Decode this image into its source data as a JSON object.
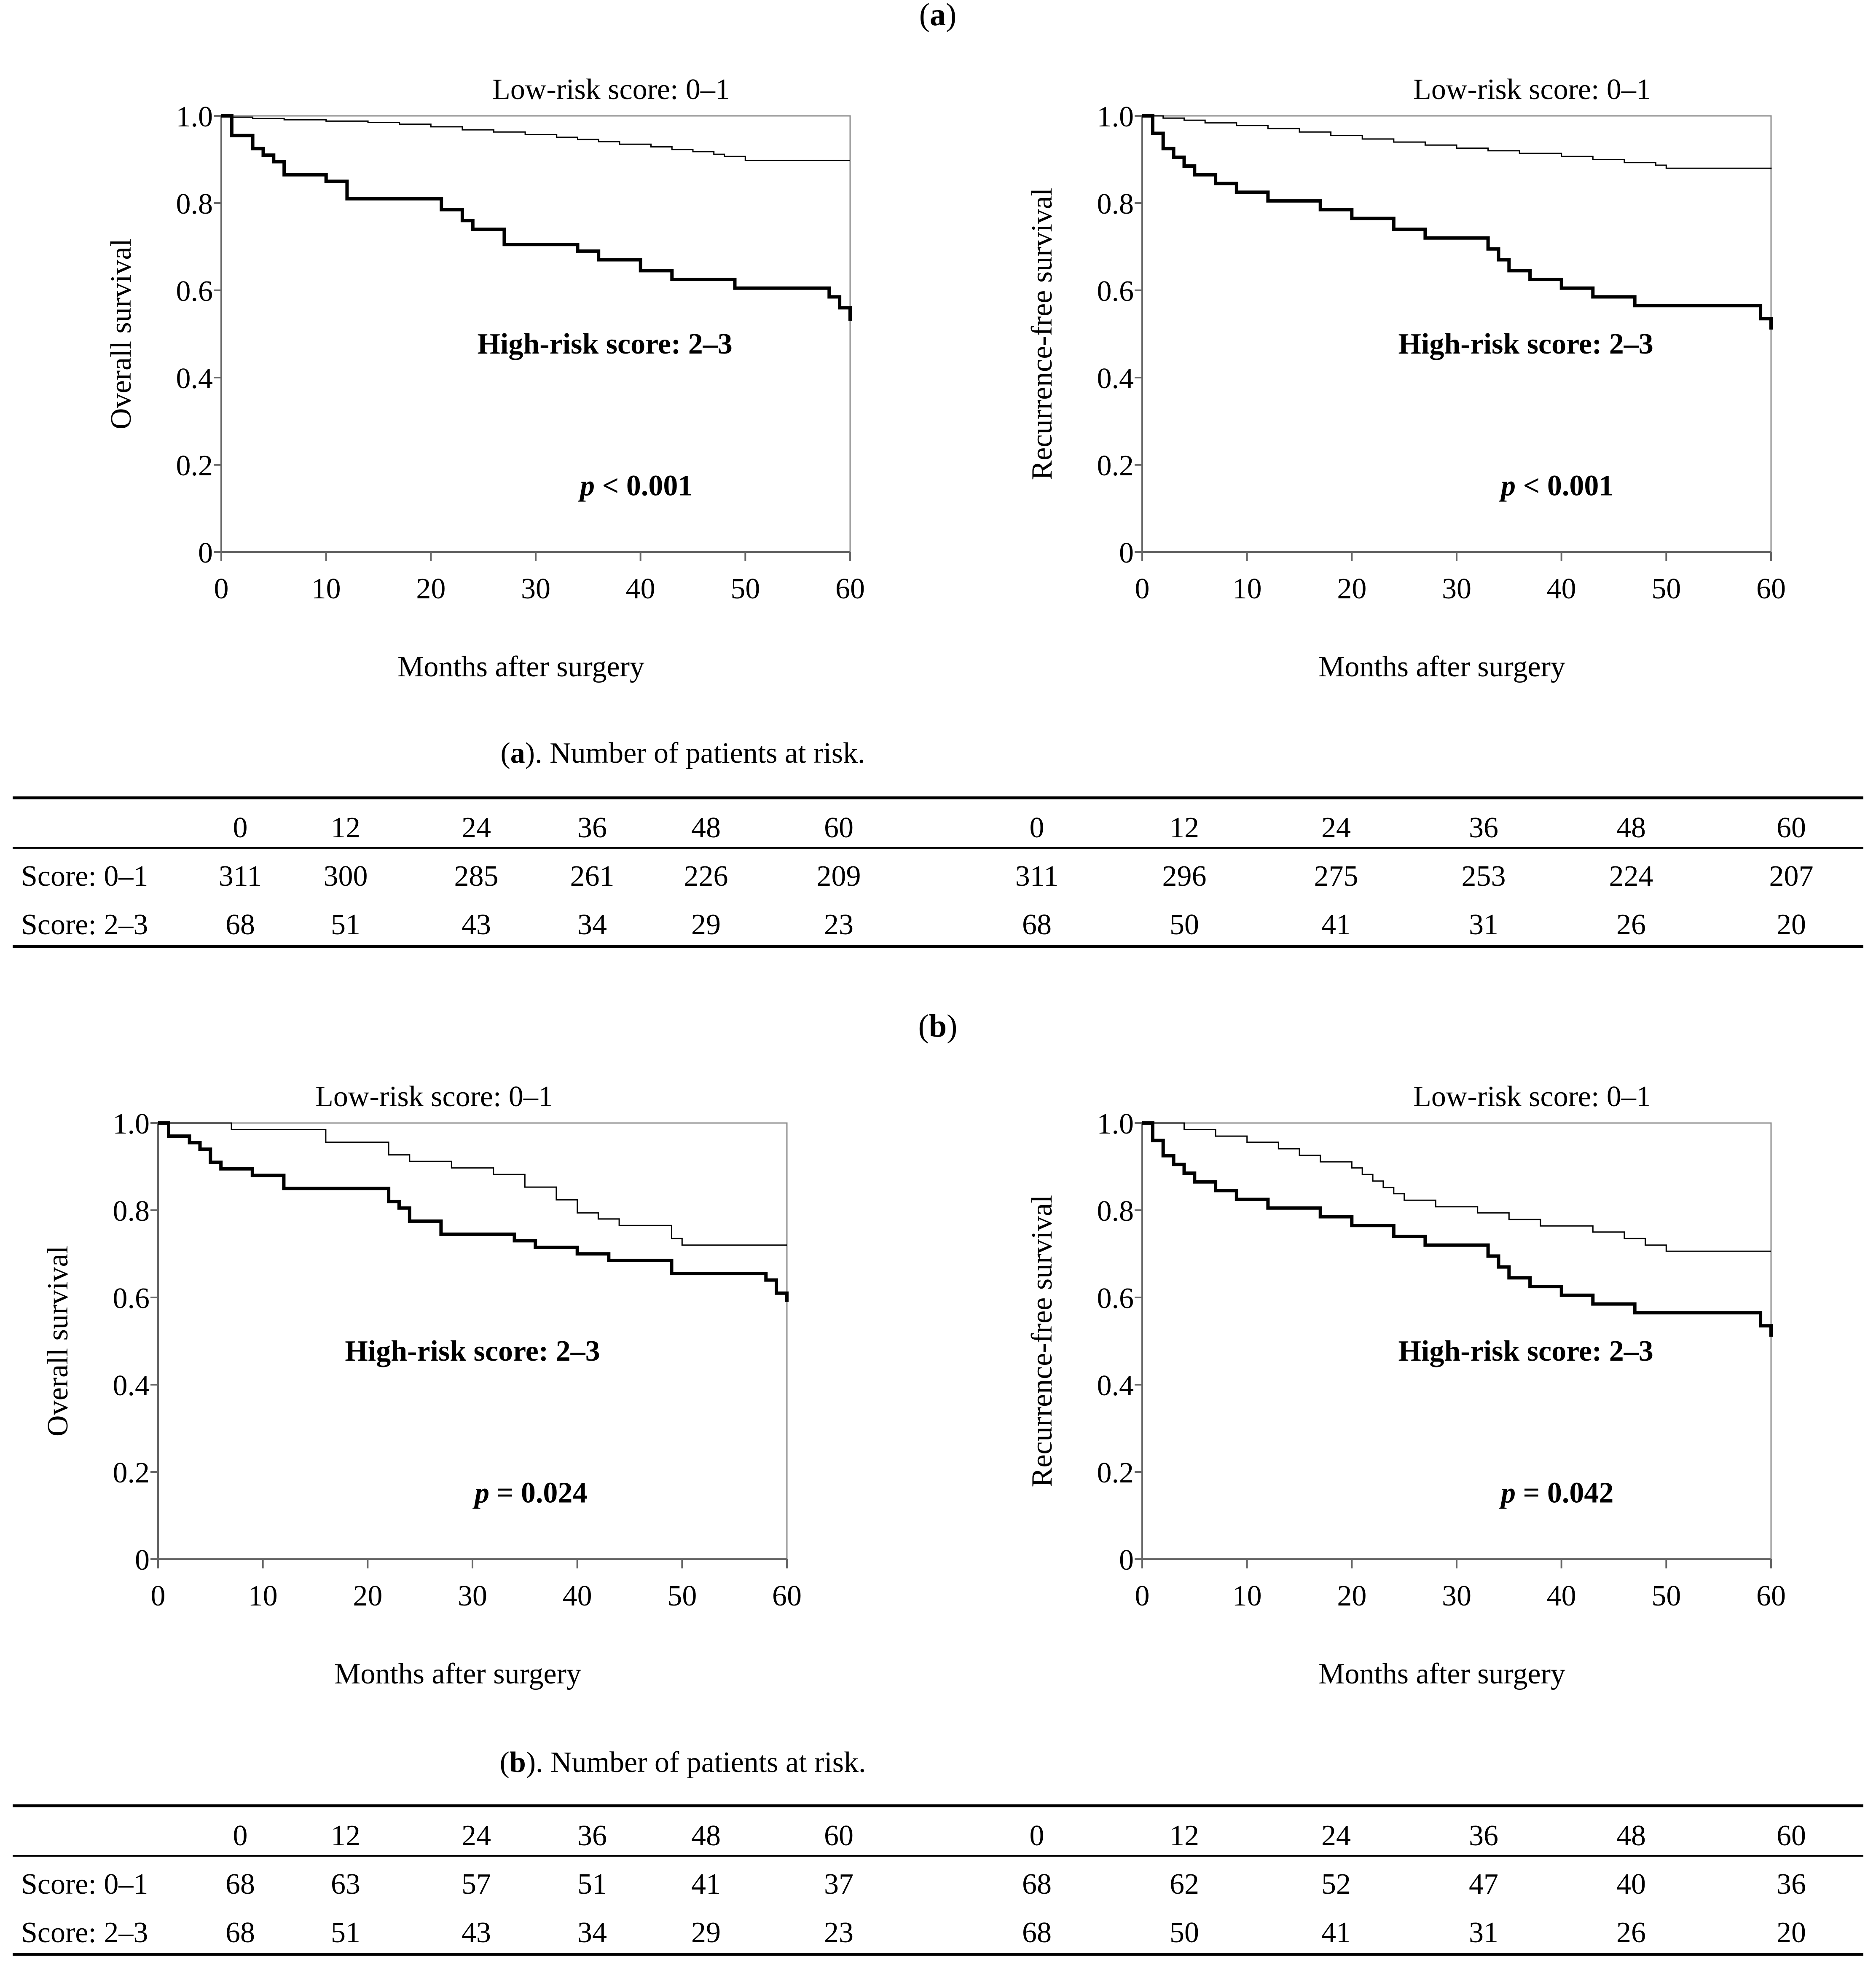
{
  "figure": {
    "panels": [
      {
        "label": "(a)",
        "table_caption_letter": "a",
        "table_caption_rest": "). Number of patients at risk.",
        "table": {
          "times": [
            "0",
            "12",
            "24",
            "36",
            "48",
            "60"
          ],
          "rows": [
            {
              "label": "Score: 0–1",
              "os": [
                "311",
                "300",
                "285",
                "261",
                "226",
                "209"
              ],
              "rfs": [
                "311",
                "296",
                "275",
                "253",
                "224",
                "207"
              ]
            },
            {
              "label": "Score: 2–3",
              "os": [
                "68",
                "51",
                "43",
                "34",
                "29",
                "23"
              ],
              "rfs": [
                "68",
                "50",
                "41",
                "31",
                "26",
                "20"
              ]
            }
          ]
        }
      },
      {
        "label": "(b)",
        "table_caption_letter": "b",
        "table_caption_rest": "). Number of patients at risk.",
        "table": {
          "times": [
            "0",
            "12",
            "24",
            "36",
            "48",
            "60"
          ],
          "rows": [
            {
              "label": "Score: 0–1",
              "os": [
                "68",
                "63",
                "57",
                "51",
                "41",
                "37"
              ],
              "rfs": [
                "68",
                "62",
                "52",
                "47",
                "40",
                "36"
              ]
            },
            {
              "label": "Score: 2–3",
              "os": [
                "68",
                "51",
                "43",
                "34",
                "29",
                "23"
              ],
              "rfs": [
                "68",
                "50",
                "41",
                "31",
                "26",
                "20"
              ]
            }
          ]
        }
      }
    ]
  },
  "chart_data": [
    {
      "type": "line",
      "subtype": "kaplan-meier step",
      "panel": "a",
      "ylabel": "Overall survival",
      "xlabel": "Months after surgery",
      "xlim": [
        0,
        60
      ],
      "ylim": [
        0,
        1.0
      ],
      "xticks": [
        0,
        10,
        20,
        30,
        40,
        50,
        60
      ],
      "yticks": [
        "0",
        "0.2",
        "0.4",
        "0.6",
        "0.8",
        "1.0"
      ],
      "low_label": "Low-risk score: 0–1",
      "high_label": "High-risk score: 2–3",
      "p_prefix": "p",
      "p_text": " < 0.001",
      "series": [
        {
          "name": "Low-risk score: 0–1",
          "style": "thin",
          "x": [
            0,
            1,
            3,
            6,
            10,
            14,
            17,
            20,
            23,
            26,
            29,
            32,
            34,
            36,
            38,
            41,
            43,
            45,
            47,
            48,
            50,
            60
          ],
          "y": [
            1.0,
            0.997,
            0.994,
            0.991,
            0.988,
            0.985,
            0.981,
            0.975,
            0.968,
            0.963,
            0.957,
            0.951,
            0.946,
            0.941,
            0.935,
            0.929,
            0.923,
            0.918,
            0.912,
            0.907,
            0.898,
            0.898
          ]
        },
        {
          "name": "High-risk score: 2–3",
          "style": "thick",
          "x": [
            0,
            1,
            3,
            4,
            5,
            6,
            10,
            12,
            21,
            23,
            24,
            27,
            34,
            36,
            40,
            43,
            49,
            58,
            59,
            60
          ],
          "y": [
            1.0,
            0.955,
            0.925,
            0.91,
            0.895,
            0.865,
            0.85,
            0.81,
            0.785,
            0.76,
            0.74,
            0.705,
            0.69,
            0.67,
            0.645,
            0.625,
            0.605,
            0.585,
            0.56,
            0.53
          ]
        }
      ]
    },
    {
      "type": "line",
      "subtype": "kaplan-meier step",
      "panel": "a",
      "ylabel": "Recurrence-free survival",
      "xlabel": "Months after surgery",
      "xlim": [
        0,
        60
      ],
      "ylim": [
        0,
        1.0
      ],
      "xticks": [
        0,
        10,
        20,
        30,
        40,
        50,
        60
      ],
      "yticks": [
        "0",
        "0.2",
        "0.4",
        "0.6",
        "0.8",
        "1.0"
      ],
      "low_label": "Low-risk score: 0–1",
      "high_label": "High-risk score: 2–3",
      "p_prefix": "p",
      "p_text": " < 0.001",
      "series": [
        {
          "name": "Low-risk score: 0–1",
          "style": "thin",
          "x": [
            0,
            2,
            4,
            6,
            9,
            12,
            15,
            18,
            21,
            24,
            27,
            30,
            33,
            36,
            40,
            43,
            46,
            49,
            50,
            60
          ],
          "y": [
            1.0,
            0.995,
            0.99,
            0.984,
            0.978,
            0.971,
            0.963,
            0.955,
            0.947,
            0.94,
            0.933,
            0.926,
            0.92,
            0.914,
            0.907,
            0.9,
            0.893,
            0.887,
            0.88,
            0.878
          ]
        },
        {
          "name": "High-risk score: 2–3",
          "style": "thick",
          "x": [
            0,
            1,
            2,
            3,
            4,
            5,
            7,
            9,
            12,
            17,
            20,
            24,
            27,
            33,
            34,
            35,
            37,
            40,
            43,
            47,
            59,
            60
          ],
          "y": [
            1.0,
            0.96,
            0.925,
            0.905,
            0.885,
            0.865,
            0.845,
            0.825,
            0.805,
            0.785,
            0.765,
            0.74,
            0.72,
            0.695,
            0.67,
            0.645,
            0.625,
            0.605,
            0.585,
            0.565,
            0.535,
            0.51
          ]
        }
      ]
    },
    {
      "type": "line",
      "subtype": "kaplan-meier step",
      "panel": "b",
      "ylabel": "Overall survival",
      "xlabel": "Months after surgery",
      "xlim": [
        0,
        60
      ],
      "ylim": [
        0,
        1.0
      ],
      "xticks": [
        0,
        10,
        20,
        30,
        40,
        50,
        60
      ],
      "yticks": [
        "0",
        "0.2",
        "0.4",
        "0.6",
        "0.8",
        "1.0"
      ],
      "low_label": "Low-risk score: 0–1",
      "high_label": "High-risk score: 2–3",
      "p_prefix": "p",
      "p_text": " = 0.024",
      "series": [
        {
          "name": "Low-risk score: 0–1",
          "style": "thin",
          "x": [
            0,
            7,
            16,
            22,
            24,
            28,
            32,
            35,
            38,
            40,
            42,
            44,
            49,
            50,
            60
          ],
          "y": [
            1.0,
            0.985,
            0.956,
            0.927,
            0.912,
            0.897,
            0.882,
            0.853,
            0.824,
            0.794,
            0.78,
            0.765,
            0.735,
            0.72,
            0.72
          ]
        },
        {
          "name": "High-risk score: 2–3",
          "style": "thick",
          "x": [
            0,
            1,
            3,
            4,
            5,
            6,
            9,
            12,
            22,
            23,
            24,
            27,
            34,
            36,
            40,
            43,
            49,
            58,
            59,
            60
          ],
          "y": [
            1.0,
            0.97,
            0.955,
            0.94,
            0.91,
            0.895,
            0.88,
            0.85,
            0.82,
            0.805,
            0.775,
            0.745,
            0.73,
            0.715,
            0.7,
            0.685,
            0.655,
            0.64,
            0.61,
            0.59
          ]
        }
      ]
    },
    {
      "type": "line",
      "subtype": "kaplan-meier step",
      "panel": "b",
      "ylabel": "Recurrence-free survival",
      "xlabel": "Months after surgery",
      "xlim": [
        0,
        60
      ],
      "ylim": [
        0,
        1.0
      ],
      "xticks": [
        0,
        10,
        20,
        30,
        40,
        50,
        60
      ],
      "yticks": [
        "0",
        "0.2",
        "0.4",
        "0.6",
        "0.8",
        "1.0"
      ],
      "low_label": "Low-risk score: 0–1",
      "high_label": "High-risk score: 2–3",
      "p_prefix": "p",
      "p_text": " = 0.042",
      "series": [
        {
          "name": "Low-risk score: 0–1",
          "style": "thin",
          "x": [
            0,
            4,
            7,
            10,
            13,
            15,
            17,
            20,
            21,
            22,
            23,
            24,
            25,
            28,
            32,
            35,
            38,
            43,
            46,
            48,
            50,
            60
          ],
          "y": [
            1.0,
            0.985,
            0.97,
            0.956,
            0.941,
            0.926,
            0.911,
            0.897,
            0.882,
            0.867,
            0.852,
            0.838,
            0.823,
            0.808,
            0.794,
            0.779,
            0.764,
            0.75,
            0.735,
            0.72,
            0.706,
            0.706
          ]
        },
        {
          "name": "High-risk score: 2–3",
          "style": "thick",
          "x": [
            0,
            1,
            2,
            3,
            4,
            5,
            7,
            9,
            12,
            17,
            20,
            24,
            27,
            33,
            34,
            35,
            37,
            40,
            43,
            47,
            59,
            60
          ],
          "y": [
            1.0,
            0.96,
            0.925,
            0.905,
            0.885,
            0.865,
            0.845,
            0.825,
            0.805,
            0.785,
            0.765,
            0.74,
            0.72,
            0.695,
            0.67,
            0.645,
            0.625,
            0.605,
            0.585,
            0.565,
            0.535,
            0.51
          ]
        }
      ]
    }
  ]
}
